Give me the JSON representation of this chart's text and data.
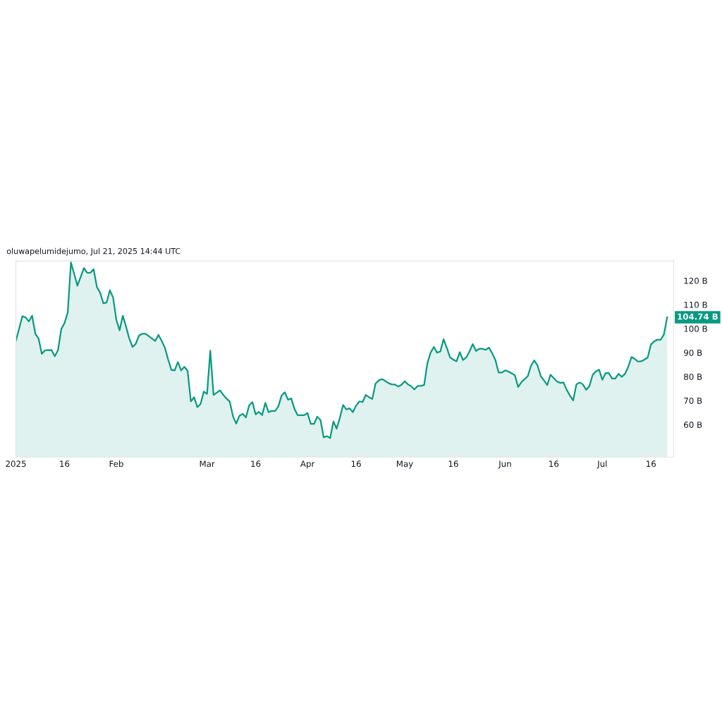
{
  "chart_data": {
    "type": "area",
    "x": [
      "2025-01-01",
      "2025-01-03",
      "2025-01-04",
      "2025-01-05",
      "2025-01-06",
      "2025-01-07",
      "2025-01-08",
      "2025-01-09",
      "2025-01-10",
      "2025-01-12",
      "2025-01-13",
      "2025-01-14",
      "2025-01-15",
      "2025-01-16",
      "2025-01-17",
      "2025-01-18",
      "2025-01-20",
      "2025-01-22",
      "2025-01-23",
      "2025-01-24",
      "2025-01-25",
      "2025-01-26",
      "2025-01-27",
      "2025-01-28",
      "2025-01-29",
      "2025-01-30",
      "2025-01-31",
      "2025-02-01",
      "2025-02-02",
      "2025-02-03",
      "2025-02-04",
      "2025-02-05",
      "2025-02-06",
      "2025-02-07",
      "2025-02-08",
      "2025-02-09",
      "2025-02-10",
      "2025-02-11",
      "2025-02-12",
      "2025-02-13",
      "2025-02-14",
      "2025-02-15",
      "2025-02-16",
      "2025-02-17",
      "2025-02-18",
      "2025-02-19",
      "2025-02-20",
      "2025-02-21",
      "2025-02-22",
      "2025-02-23",
      "2025-02-24",
      "2025-02-25",
      "2025-02-26",
      "2025-02-27",
      "2025-02-28",
      "2025-03-01",
      "2025-03-02",
      "2025-03-03",
      "2025-03-05",
      "2025-03-06",
      "2025-03-07",
      "2025-03-08",
      "2025-03-09",
      "2025-03-10",
      "2025-03-11",
      "2025-03-12",
      "2025-03-13",
      "2025-03-14",
      "2025-03-15",
      "2025-03-16",
      "2025-03-17",
      "2025-03-18",
      "2025-03-19",
      "2025-03-20",
      "2025-03-21",
      "2025-03-22",
      "2025-03-23",
      "2025-03-24",
      "2025-03-25",
      "2025-03-26",
      "2025-03-27",
      "2025-03-28",
      "2025-03-29",
      "2025-03-30",
      "2025-03-31",
      "2025-04-01",
      "2025-04-02",
      "2025-04-03",
      "2025-04-04",
      "2025-04-05",
      "2025-04-06",
      "2025-04-07",
      "2025-04-08",
      "2025-04-09",
      "2025-04-10",
      "2025-04-11",
      "2025-04-12",
      "2025-04-13",
      "2025-04-14",
      "2025-04-15",
      "2025-04-16",
      "2025-04-17",
      "2025-04-18",
      "2025-04-19",
      "2025-04-20",
      "2025-04-21",
      "2025-04-22",
      "2025-04-23",
      "2025-04-24",
      "2025-04-25",
      "2025-04-26",
      "2025-04-27",
      "2025-04-28",
      "2025-04-29",
      "2025-04-30",
      "2025-05-01",
      "2025-05-02",
      "2025-05-03",
      "2025-05-04",
      "2025-05-05",
      "2025-05-06",
      "2025-05-07",
      "2025-05-08",
      "2025-05-09",
      "2025-05-10",
      "2025-05-11",
      "2025-05-12",
      "2025-05-13",
      "2025-05-14",
      "2025-05-15",
      "2025-05-16",
      "2025-05-17",
      "2025-05-18",
      "2025-05-19",
      "2025-05-20",
      "2025-05-21",
      "2025-05-22",
      "2025-05-23",
      "2025-05-24",
      "2025-05-25",
      "2025-05-26",
      "2025-05-27",
      "2025-05-28",
      "2025-05-29",
      "2025-05-30",
      "2025-05-31",
      "2025-06-01",
      "2025-06-02",
      "2025-06-03",
      "2025-06-04",
      "2025-06-05",
      "2025-06-06",
      "2025-06-07",
      "2025-06-08",
      "2025-06-09",
      "2025-06-10",
      "2025-06-11",
      "2025-06-12",
      "2025-06-13",
      "2025-06-14",
      "2025-06-15",
      "2025-06-16",
      "2025-06-17",
      "2025-06-18",
      "2025-06-19",
      "2025-06-20",
      "2025-06-21",
      "2025-06-22",
      "2025-06-23",
      "2025-06-24",
      "2025-06-25",
      "2025-06-26",
      "2025-06-27",
      "2025-06-28",
      "2025-06-29",
      "2025-06-30",
      "2025-07-01",
      "2025-07-02",
      "2025-07-03",
      "2025-07-04",
      "2025-07-05",
      "2025-07-06",
      "2025-07-07",
      "2025-07-08",
      "2025-07-09",
      "2025-07-10",
      "2025-07-11",
      "2025-07-12",
      "2025-07-13",
      "2025-07-14",
      "2025-07-15",
      "2025-07-16",
      "2025-07-17",
      "2025-07-18",
      "2025-07-19",
      "2025-07-20",
      "2025-07-21"
    ],
    "series": [
      {
        "color": "#089981",
        "values": [
          94.9,
          105.2,
          104.7,
          103.0,
          105.4,
          97.9,
          95.9,
          89.5,
          91.0,
          91.1,
          88.5,
          91.0,
          99.8,
          102.3,
          106.7,
          127.6,
          117.9,
          125.3,
          123.3,
          123.3,
          124.8,
          117.4,
          115.0,
          110.6,
          110.9,
          116.0,
          113.0,
          103.7,
          99.3,
          105.4,
          100.8,
          95.9,
          92.4,
          93.7,
          97.1,
          97.9,
          97.9,
          96.9,
          95.9,
          94.9,
          97.4,
          94.9,
          92.0,
          87.1,
          82.8,
          82.6,
          86.1,
          82.6,
          84.1,
          82.4,
          69.7,
          71.4,
          67.3,
          68.6,
          73.8,
          72.8,
          90.8,
          72.4,
          74.3,
          72.4,
          70.9,
          69.6,
          63.5,
          60.4,
          63.7,
          64.5,
          63.0,
          68.1,
          69.4,
          64.3,
          65.3,
          64.0,
          69.1,
          65.2,
          65.7,
          65.7,
          67.6,
          72.1,
          73.5,
          70.4,
          70.9,
          66.5,
          63.9,
          63.9,
          63.9,
          64.9,
          60.3,
          60.3,
          63.3,
          62.0,
          54.7,
          55.2,
          54.4,
          61.3,
          58.3,
          62.9,
          68.2,
          66.3,
          66.8,
          65.2,
          67.9,
          69.7,
          69.4,
          72.4,
          71.4,
          70.7,
          77.1,
          78.4,
          79.0,
          78.2,
          77.3,
          76.8,
          76.7,
          75.9,
          76.6,
          78.1,
          76.8,
          76.0,
          74.7,
          76.1,
          76.2,
          76.5,
          85.6,
          90.0,
          92.4,
          90.0,
          90.5,
          95.6,
          92.0,
          88.0,
          87.1,
          86.4,
          90.2,
          86.9,
          88.0,
          90.5,
          93.6,
          90.7,
          91.6,
          91.6,
          91.2,
          92.1,
          89.8,
          86.9,
          81.7,
          81.7,
          82.6,
          82.2,
          81.4,
          80.6,
          75.7,
          77.7,
          79.0,
          80.2,
          84.6,
          86.8,
          84.6,
          80.2,
          78.4,
          76.5,
          80.8,
          79.4,
          78.0,
          77.4,
          77.6,
          74.5,
          72.1,
          70.1,
          76.8,
          77.6,
          76.8,
          74.5,
          76.0,
          80.7,
          82.2,
          82.9,
          78.7,
          81.5,
          81.5,
          79.2,
          79.2,
          81.2,
          79.9,
          81.2,
          84.1,
          88.2,
          87.4,
          86.3,
          86.4,
          87.1,
          88.0,
          93.4,
          94.7,
          95.4,
          95.4,
          97.6,
          104.74
        ]
      }
    ],
    "xlim": [
      "2025-01-01",
      "2025-07-23"
    ],
    "xticks": [
      {
        "value": "2025-01-01",
        "label": "2025"
      },
      {
        "value": "2025-01-16",
        "label": "16"
      },
      {
        "value": "2025-02-01",
        "label": "Feb"
      },
      {
        "value": "2025-03-01",
        "label": "Mar"
      },
      {
        "value": "2025-03-16",
        "label": "16"
      },
      {
        "value": "2025-04-01",
        "label": "Apr"
      },
      {
        "value": "2025-04-16",
        "label": "16"
      },
      {
        "value": "2025-05-01",
        "label": "May"
      },
      {
        "value": "2025-05-16",
        "label": "16"
      },
      {
        "value": "2025-06-01",
        "label": "Jun"
      },
      {
        "value": "2025-06-16",
        "label": "16"
      },
      {
        "value": "2025-07-01",
        "label": "Jul"
      },
      {
        "value": "2025-07-16",
        "label": "16"
      }
    ],
    "ylim": [
      46.5,
      128.2
    ],
    "yticks": [
      {
        "value": 60,
        "label": "60 B"
      },
      {
        "value": 70,
        "label": "70 B"
      },
      {
        "value": 80,
        "label": "80 B"
      },
      {
        "value": 90,
        "label": "90 B"
      },
      {
        "value": 100,
        "label": "100 B"
      },
      {
        "value": 110,
        "label": "110 B"
      },
      {
        "value": 120,
        "label": "120 B"
      }
    ],
    "grid": false,
    "annotations": [
      "oluwapelumidejumo, Jul 21, 2025 14:44 UTC",
      {
        "text": "104.74 B",
        "x": "2025-07-21",
        "y": 104.74
      }
    ]
  }
}
